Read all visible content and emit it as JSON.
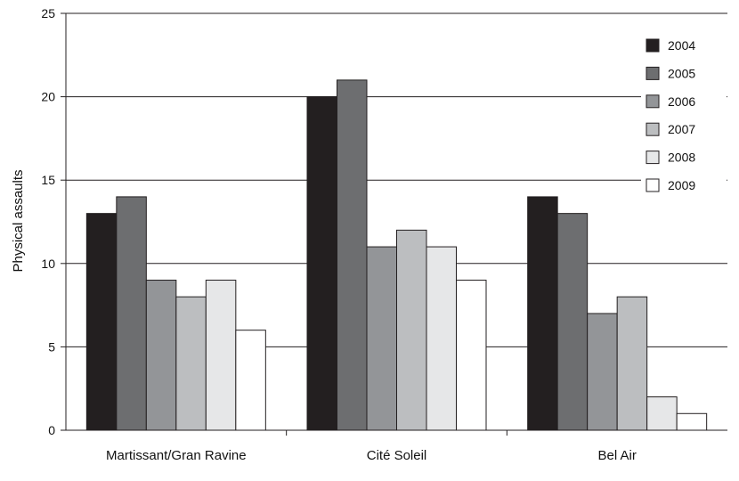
{
  "chart_data": {
    "type": "bar",
    "title": "",
    "xlabel": "",
    "ylabel": "Physical assaults",
    "ylim": [
      0,
      25
    ],
    "yticks": [
      0,
      5,
      10,
      15,
      20,
      25
    ],
    "grid": true,
    "legend_position": "top-right",
    "categories": [
      "Martissant/Gran Ravine",
      "Cité Soleil",
      "Bel Air"
    ],
    "series": [
      {
        "name": "2004",
        "color": "#231f20",
        "values": [
          13,
          20,
          14
        ]
      },
      {
        "name": "2005",
        "color": "#6d6e70",
        "values": [
          14,
          21,
          13
        ]
      },
      {
        "name": "2006",
        "color": "#939598",
        "values": [
          9,
          11,
          7
        ]
      },
      {
        "name": "2007",
        "color": "#bcbec0",
        "values": [
          8,
          12,
          8
        ]
      },
      {
        "name": "2008",
        "color": "#e6e7e8",
        "values": [
          9,
          11,
          2
        ]
      },
      {
        "name": "2009",
        "color": "#ffffff",
        "values": [
          6,
          9,
          1
        ]
      }
    ]
  }
}
